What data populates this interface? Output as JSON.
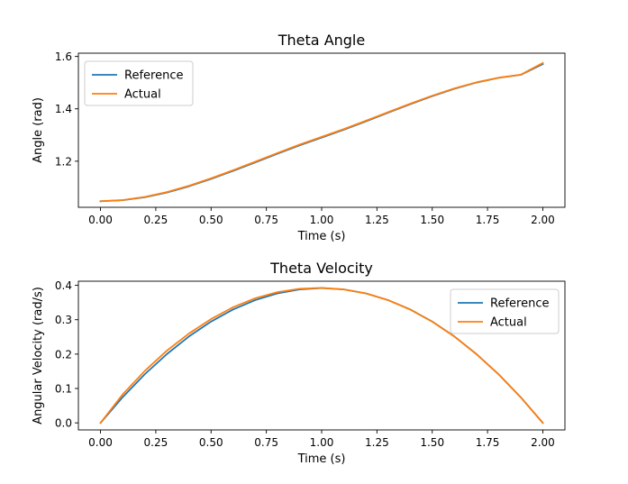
{
  "chart_data": [
    {
      "type": "line",
      "title": "Theta Angle",
      "xlabel": "Time (s)",
      "ylabel": "Angle (rad)",
      "xlim": [
        -0.1,
        2.1
      ],
      "ylim": [
        1.024,
        1.6125
      ],
      "x_ticks": [
        "0.00",
        "0.25",
        "0.50",
        "0.75",
        "1.00",
        "1.25",
        "1.50",
        "1.75",
        "2.00"
      ],
      "y_ticks": [
        "1.2",
        "1.4",
        "1.6"
      ],
      "legend_location": "upper-left",
      "x": [
        0.0,
        0.1,
        0.2,
        0.3,
        0.4,
        0.5,
        0.6,
        0.7,
        0.8,
        0.9,
        1.0,
        1.1,
        1.2,
        1.3,
        1.4,
        1.5,
        1.6,
        1.7,
        1.8,
        1.9,
        2.0
      ],
      "series": [
        {
          "name": "Reference",
          "color": "#1f77b4",
          "values": [
            1.0472,
            1.0511,
            1.0625,
            1.0805,
            1.1042,
            1.1322,
            1.1631,
            1.1957,
            1.2286,
            1.2606,
            1.2904,
            1.3202,
            1.3522,
            1.3852,
            1.4177,
            1.4486,
            1.4767,
            1.5004,
            1.5183,
            1.5298,
            1.5708
          ]
        },
        {
          "name": "Actual",
          "color": "#ff7f0e",
          "values": [
            1.0472,
            1.0516,
            1.0636,
            1.0822,
            1.1063,
            1.1346,
            1.1657,
            1.1983,
            1.2312,
            1.2631,
            1.2928,
            1.3225,
            1.3543,
            1.3871,
            1.4194,
            1.4501,
            1.4779,
            1.5013,
            1.5189,
            1.5302,
            1.575
          ]
        }
      ]
    },
    {
      "type": "line",
      "title": "Theta Velocity",
      "xlabel": "Time (s)",
      "ylabel": "Angular Velocity (rad/s)",
      "xlim": [
        -0.1,
        2.1
      ],
      "ylim": [
        -0.0205,
        0.412
      ],
      "x_ticks": [
        "0.00",
        "0.25",
        "0.50",
        "0.75",
        "1.00",
        "1.25",
        "1.50",
        "1.75",
        "2.00"
      ],
      "y_ticks": [
        "0.0",
        "0.1",
        "0.2",
        "0.3",
        "0.4"
      ],
      "legend_location": "upper-right",
      "x": [
        0.0,
        0.1,
        0.2,
        0.3,
        0.4,
        0.5,
        0.6,
        0.7,
        0.8,
        0.9,
        1.0,
        1.1,
        1.2,
        1.3,
        1.4,
        1.5,
        1.6,
        1.7,
        1.8,
        1.9,
        2.0
      ],
      "series": [
        {
          "name": "Reference",
          "color": "#1f77b4",
          "values": [
            0.0,
            0.0746,
            0.1414,
            0.2,
            0.2514,
            0.2946,
            0.33,
            0.3571,
            0.3765,
            0.388,
            0.392,
            0.388,
            0.3765,
            0.3571,
            0.33,
            0.2946,
            0.2514,
            0.2,
            0.1414,
            0.0746,
            0.0
          ]
        },
        {
          "name": "Actual",
          "color": "#ff7f0e",
          "values": [
            0.0,
            0.0826,
            0.151,
            0.21,
            0.2598,
            0.302,
            0.3365,
            0.3625,
            0.3801,
            0.39,
            0.3925,
            0.3882,
            0.3765,
            0.357,
            0.3298,
            0.2944,
            0.2512,
            0.1998,
            0.1412,
            0.0744,
            0.0
          ]
        }
      ]
    }
  ]
}
